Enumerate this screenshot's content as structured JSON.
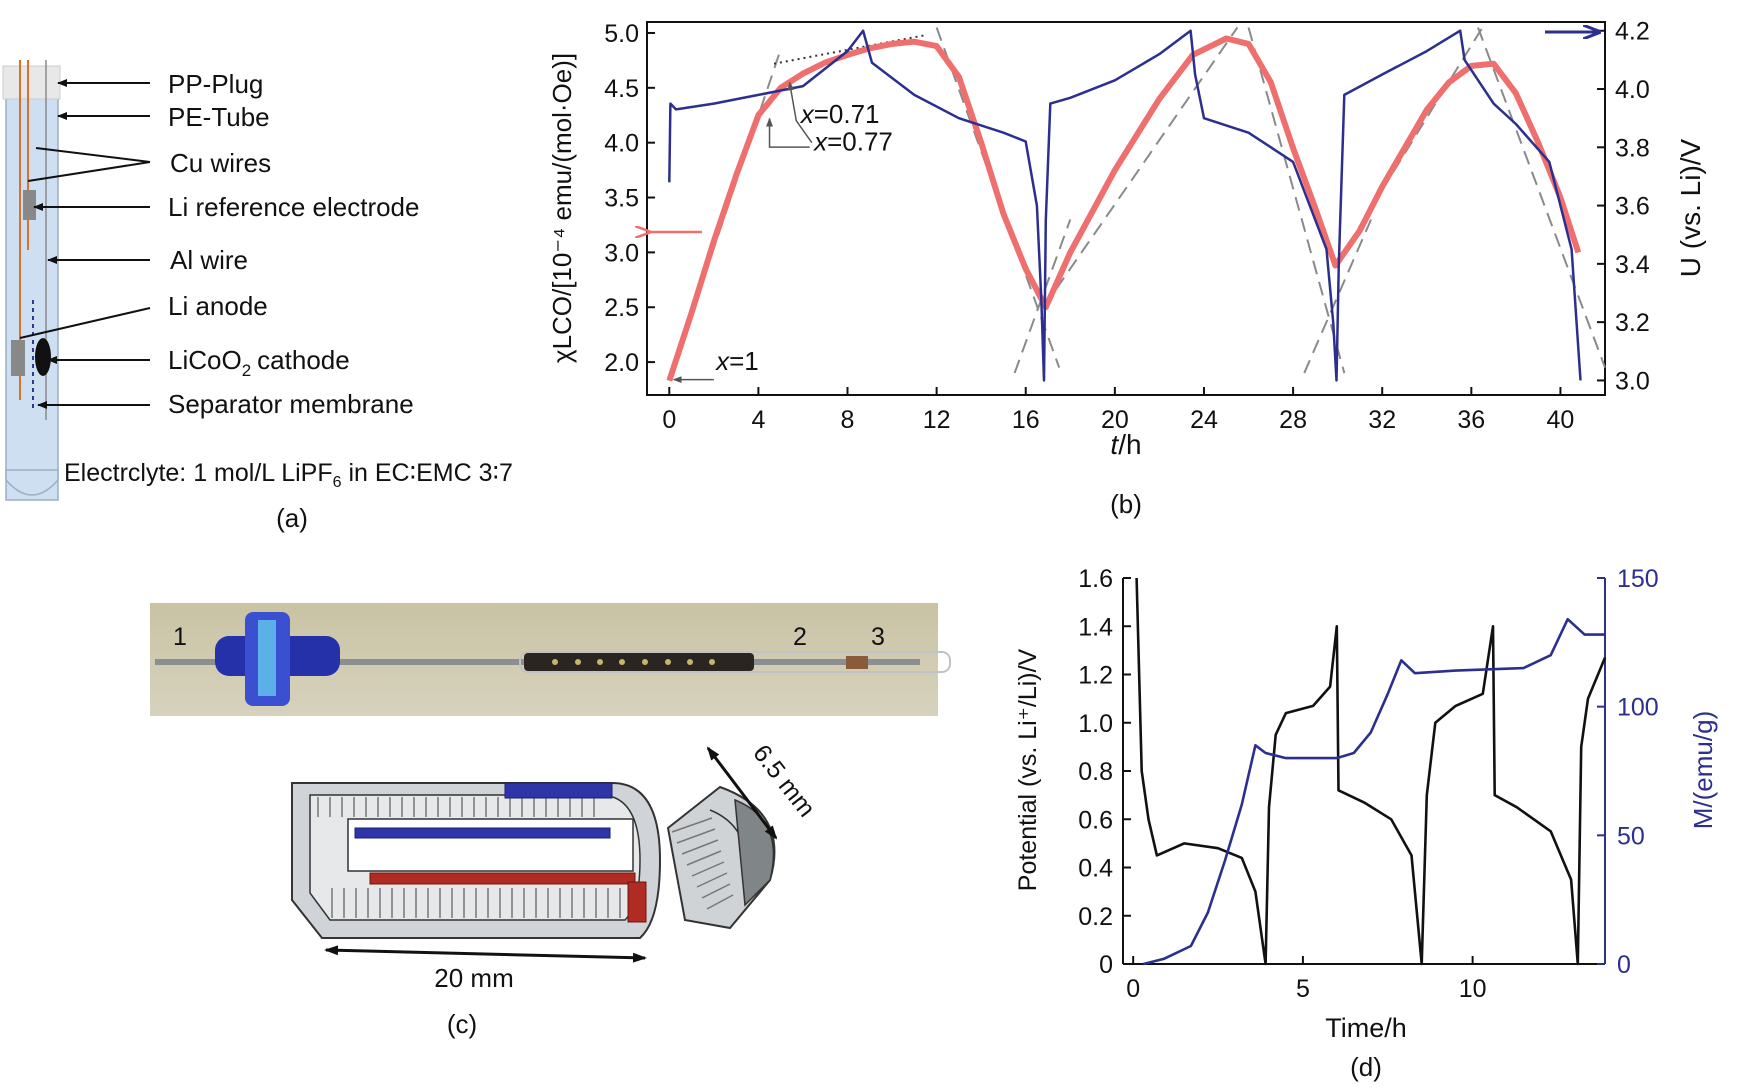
{
  "panels": {
    "a": {
      "caption": "(a)",
      "labels": [
        "PP-Plug",
        "PE-Tube",
        "Cu wires",
        "Li reference electrode",
        "Al wire",
        "Li anode",
        "LiCoO",
        "cathode",
        "Separator membrane"
      ],
      "subscript_2": "2",
      "electrolyte_1": "Electrclyte: 1 mol/L LiPF",
      "electrolyte_sub": "6",
      "electrolyte_2": " in EC∶EMC 3∶7"
    },
    "b": {
      "caption": "(b)"
    },
    "c": {
      "caption": "(c)",
      "photo_labels": [
        "1",
        "2",
        "3"
      ],
      "dim_width": "6.5 mm",
      "dim_length": "20 mm"
    },
    "d": {
      "caption": "(d)"
    }
  },
  "chart_data": [
    {
      "panel": "b",
      "type": "line",
      "xlabel_italic": "t",
      "xlabel_rest": "/h",
      "ylabel_left": "χLCO/[10⁻⁴ emu/(mol·Oe)]",
      "ylabel_right_pre": "U (vs. Li)/V",
      "xlim": [
        -1,
        42
      ],
      "ylim": [
        1.7,
        5.1
      ],
      "ylim_right": [
        2.95,
        4.23
      ],
      "x_ticks": [
        0,
        4,
        8,
        12,
        16,
        20,
        24,
        28,
        32,
        36,
        40
      ],
      "y_ticks": [
        "2.0",
        "2.5",
        "3.0",
        "3.5",
        "4.0",
        "4.5",
        "5.0"
      ],
      "y_right_ticks": [
        "3.0",
        "3.2",
        "3.4",
        "3.6",
        "3.8",
        "4.0",
        "4.2"
      ],
      "annotations": [
        {
          "italic": "x",
          "text": "=0.71",
          "x": 5.9,
          "y": 4.18
        },
        {
          "italic": "x",
          "text": "=0.77",
          "x": 6.5,
          "y": 3.93
        },
        {
          "italic": "x",
          "text": "=1",
          "x": 2.1,
          "y": 1.93
        }
      ],
      "series": [
        {
          "name": "χLCO",
          "axis": "left",
          "color": "#ef6f6f",
          "points": [
            [
              0,
              1.83
            ],
            [
              1,
              2.45
            ],
            [
              2,
              3.1
            ],
            [
              3,
              3.7
            ],
            [
              4,
              4.25
            ],
            [
              5,
              4.5
            ],
            [
              6,
              4.63
            ],
            [
              7,
              4.73
            ],
            [
              8,
              4.8
            ],
            [
              9,
              4.86
            ],
            [
              10,
              4.9
            ],
            [
              11,
              4.92
            ],
            [
              12,
              4.88
            ],
            [
              13,
              4.6
            ],
            [
              14,
              4.0
            ],
            [
              15,
              3.35
            ],
            [
              16,
              2.85
            ],
            [
              16.9,
              2.5
            ],
            [
              18,
              3.0
            ],
            [
              20,
              3.75
            ],
            [
              22,
              4.4
            ],
            [
              23.5,
              4.8
            ],
            [
              25,
              4.95
            ],
            [
              26,
              4.9
            ],
            [
              27,
              4.55
            ],
            [
              28,
              3.95
            ],
            [
              29,
              3.4
            ],
            [
              29.9,
              2.88
            ],
            [
              31,
              3.2
            ],
            [
              32,
              3.6
            ],
            [
              33,
              3.95
            ],
            [
              34,
              4.3
            ],
            [
              35,
              4.55
            ],
            [
              36,
              4.7
            ],
            [
              37,
              4.72
            ],
            [
              38,
              4.45
            ],
            [
              39,
              4.0
            ],
            [
              40,
              3.5
            ],
            [
              40.8,
              3.0
            ]
          ]
        },
        {
          "name": "U",
          "axis": "right",
          "color": "#2c2f8f",
          "points": [
            [
              0,
              3.68
            ],
            [
              0.05,
              3.95
            ],
            [
              0.3,
              3.93
            ],
            [
              2,
              3.95
            ],
            [
              4,
              3.98
            ],
            [
              6,
              4.01
            ],
            [
              7,
              4.07
            ],
            [
              8,
              4.13
            ],
            [
              8.7,
              4.2
            ],
            [
              9.1,
              4.09
            ],
            [
              11,
              3.98
            ],
            [
              13,
              3.9
            ],
            [
              15,
              3.85
            ],
            [
              16,
              3.82
            ],
            [
              16.5,
              3.6
            ],
            [
              16.7,
              3.28
            ],
            [
              16.82,
              3.0
            ],
            [
              16.9,
              3.55
            ],
            [
              17.1,
              3.95
            ],
            [
              18,
              3.97
            ],
            [
              20,
              4.03
            ],
            [
              22,
              4.12
            ],
            [
              23.4,
              4.2
            ],
            [
              23.6,
              4.05
            ],
            [
              24,
              3.9
            ],
            [
              26,
              3.85
            ],
            [
              28,
              3.75
            ],
            [
              29.5,
              3.45
            ],
            [
              29.8,
              3.2
            ],
            [
              29.95,
              3.0
            ],
            [
              30.05,
              3.4
            ],
            [
              30.3,
              3.98
            ],
            [
              32,
              4.05
            ],
            [
              34,
              4.13
            ],
            [
              35.5,
              4.2
            ],
            [
              35.7,
              4.1
            ],
            [
              37,
              3.95
            ],
            [
              38,
              3.88
            ],
            [
              39.5,
              3.75
            ],
            [
              40.5,
              3.45
            ],
            [
              40.9,
              3.0
            ]
          ]
        }
      ]
    },
    {
      "panel": "d",
      "type": "line",
      "xlabel": "Time/h",
      "ylabel_left": "Potential (vs. Li⁺/Li)/V",
      "ylabel_right": "M/(emu/g)",
      "xlim": [
        -0.3,
        13.9
      ],
      "ylim": [
        0,
        1.6
      ],
      "ylim_right": [
        0,
        150
      ],
      "x_ticks": [
        0,
        5,
        10
      ],
      "y_ticks": [
        "0",
        "0.2",
        "0.4",
        "0.6",
        "0.8",
        "1.0",
        "1.2",
        "1.4",
        "1.6"
      ],
      "y_right_ticks": [
        "0",
        "50",
        "100",
        "150"
      ],
      "series": [
        {
          "name": "Potential",
          "axis": "left",
          "color": "#111111",
          "points": [
            [
              0.1,
              1.6
            ],
            [
              0.25,
              0.8
            ],
            [
              0.45,
              0.6
            ],
            [
              0.7,
              0.45
            ],
            [
              1.5,
              0.5
            ],
            [
              2.5,
              0.48
            ],
            [
              3.2,
              0.44
            ],
            [
              3.6,
              0.3
            ],
            [
              3.8,
              0.1
            ],
            [
              3.9,
              0.0
            ],
            [
              4.0,
              0.65
            ],
            [
              4.2,
              0.95
            ],
            [
              4.5,
              1.04
            ],
            [
              5.3,
              1.07
            ],
            [
              5.8,
              1.15
            ],
            [
              6.0,
              1.4
            ],
            [
              6.05,
              0.72
            ],
            [
              6.8,
              0.67
            ],
            [
              7.6,
              0.6
            ],
            [
              8.2,
              0.45
            ],
            [
              8.5,
              0.0
            ],
            [
              8.65,
              0.7
            ],
            [
              8.9,
              1.0
            ],
            [
              9.5,
              1.07
            ],
            [
              10.3,
              1.12
            ],
            [
              10.6,
              1.4
            ],
            [
              10.65,
              0.7
            ],
            [
              11.3,
              0.65
            ],
            [
              12.3,
              0.55
            ],
            [
              12.9,
              0.35
            ],
            [
              13.1,
              0.0
            ],
            [
              13.2,
              0.9
            ],
            [
              13.4,
              1.1
            ],
            [
              13.9,
              1.27
            ]
          ]
        },
        {
          "name": "M",
          "axis": "right",
          "color": "#2c2f8f",
          "points": [
            [
              0.3,
              0
            ],
            [
              0.9,
              2
            ],
            [
              1.7,
              7
            ],
            [
              2.2,
              20
            ],
            [
              2.7,
              40
            ],
            [
              3.2,
              62
            ],
            [
              3.6,
              85
            ],
            [
              3.9,
              82
            ],
            [
              4.5,
              80
            ],
            [
              6.0,
              80
            ],
            [
              6.5,
              82
            ],
            [
              7.0,
              90
            ],
            [
              7.5,
              105
            ],
            [
              7.9,
              118
            ],
            [
              8.3,
              113
            ],
            [
              9.5,
              114
            ],
            [
              11.5,
              115
            ],
            [
              12.3,
              120
            ],
            [
              12.8,
              134
            ],
            [
              13.3,
              128
            ],
            [
              13.9,
              128
            ]
          ]
        }
      ]
    }
  ]
}
